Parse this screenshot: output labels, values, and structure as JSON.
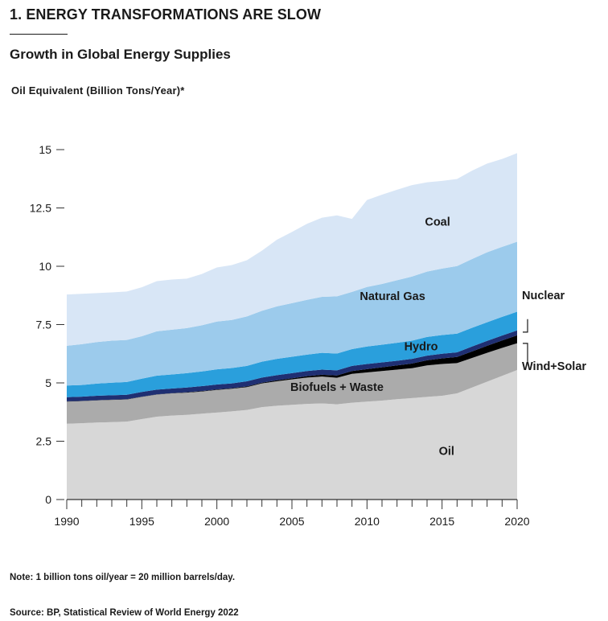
{
  "header": {
    "title": "1. ENERGY TRANSFORMATIONS ARE SLOW",
    "subtitle": "Growth in Global Energy Supplies",
    "units": "Oil Equivalent (Billion Tons/Year)*"
  },
  "footer": {
    "note": "Note: 1 billion tons oil/year = 20 million barrels/day.",
    "source": "Source: BP, Statistical Review of World Energy 2022"
  },
  "colors": {
    "oil": "#d7d7d7",
    "biofuels": "#ababab",
    "wind_solar": "#000000",
    "nuclear": "#1f2f72",
    "hydro": "#2a9fdc",
    "natural_gas": "#9ccbec",
    "coal": "#d8e6f6",
    "axis": "#333333"
  },
  "chart_data": {
    "type": "area",
    "stacked": true,
    "title": "Growth in Global Energy Supplies",
    "xlabel": "",
    "ylabel": "Oil Equivalent (Billion Tons/Year)*",
    "xlim": [
      1990,
      2020
    ],
    "ylim": [
      0,
      15
    ],
    "x_ticks": [
      1990,
      1995,
      2000,
      2005,
      2010,
      2015,
      2020
    ],
    "y_ticks": [
      0,
      2.5,
      5,
      7.5,
      10,
      12.5,
      15
    ],
    "y_tick_labels": [
      "0",
      "2.5",
      "5",
      "7.5",
      "10",
      "12.5",
      "15"
    ],
    "x": [
      1990,
      1991,
      1992,
      1993,
      1994,
      1995,
      1996,
      1997,
      1998,
      1999,
      2000,
      2001,
      2002,
      2003,
      2004,
      2005,
      2006,
      2007,
      2008,
      2009,
      2010,
      2011,
      2012,
      2013,
      2014,
      2015,
      2016,
      2017,
      2018,
      2019,
      2020
    ],
    "series": [
      {
        "name": "Oil",
        "key": "oil",
        "values": [
          3.25,
          3.27,
          3.3,
          3.32,
          3.34,
          3.45,
          3.55,
          3.6,
          3.63,
          3.68,
          3.73,
          3.78,
          3.84,
          3.96,
          4.02,
          4.06,
          4.1,
          4.12,
          4.08,
          4.15,
          4.2,
          4.24,
          4.3,
          4.35,
          4.4,
          4.45,
          4.55,
          4.8,
          5.05,
          5.3,
          5.55
        ]
      },
      {
        "name": "Biofuels + Waste",
        "key": "biofuels",
        "values": [
          0.95,
          0.95,
          0.95,
          0.95,
          0.95,
          0.95,
          0.95,
          0.95,
          0.95,
          0.95,
          0.97,
          0.97,
          0.98,
          1.02,
          1.05,
          1.09,
          1.13,
          1.15,
          1.14,
          1.24,
          1.25,
          1.27,
          1.27,
          1.28,
          1.35,
          1.36,
          1.3,
          1.27,
          1.24,
          1.2,
          1.15
        ]
      },
      {
        "name": "Wind+Solar",
        "key": "wind_solar",
        "values": [
          0.01,
          0.01,
          0.01,
          0.01,
          0.01,
          0.01,
          0.01,
          0.01,
          0.02,
          0.02,
          0.02,
          0.02,
          0.03,
          0.03,
          0.04,
          0.05,
          0.06,
          0.08,
          0.1,
          0.12,
          0.14,
          0.16,
          0.18,
          0.2,
          0.22,
          0.24,
          0.26,
          0.28,
          0.3,
          0.32,
          0.34
        ]
      },
      {
        "name": "Nuclear",
        "key": "nuclear",
        "values": [
          0.18,
          0.18,
          0.19,
          0.19,
          0.19,
          0.2,
          0.2,
          0.2,
          0.2,
          0.21,
          0.21,
          0.21,
          0.22,
          0.22,
          0.22,
          0.22,
          0.22,
          0.22,
          0.22,
          0.22,
          0.22,
          0.21,
          0.2,
          0.2,
          0.2,
          0.2,
          0.2,
          0.21,
          0.21,
          0.21,
          0.21
        ]
      },
      {
        "name": "Hydro",
        "key": "hydro",
        "values": [
          0.5,
          0.5,
          0.52,
          0.54,
          0.55,
          0.57,
          0.6,
          0.6,
          0.62,
          0.63,
          0.65,
          0.66,
          0.66,
          0.68,
          0.7,
          0.7,
          0.7,
          0.72,
          0.72,
          0.72,
          0.75,
          0.76,
          0.77,
          0.78,
          0.8,
          0.8,
          0.8,
          0.8,
          0.8,
          0.8,
          0.8
        ]
      },
      {
        "name": "Natural Gas",
        "key": "natural_gas",
        "values": [
          1.7,
          1.75,
          1.78,
          1.8,
          1.8,
          1.82,
          1.9,
          1.92,
          1.93,
          1.98,
          2.05,
          2.06,
          2.12,
          2.18,
          2.25,
          2.3,
          2.35,
          2.4,
          2.45,
          2.45,
          2.55,
          2.6,
          2.68,
          2.75,
          2.8,
          2.85,
          2.9,
          2.95,
          3.0,
          3.0,
          3.0
        ]
      },
      {
        "name": "Coal",
        "key": "coal",
        "values": [
          2.2,
          2.16,
          2.1,
          2.07,
          2.08,
          2.1,
          2.15,
          2.15,
          2.12,
          2.2,
          2.32,
          2.35,
          2.41,
          2.58,
          2.86,
          3.05,
          3.26,
          3.39,
          3.47,
          3.13,
          3.73,
          3.83,
          3.88,
          3.92,
          3.83,
          3.76,
          3.73,
          3.79,
          3.8,
          3.77,
          3.8
        ]
      }
    ],
    "labels": {
      "oil": "Oil",
      "biofuels": "Biofuels + Waste",
      "hydro": "Hydro",
      "natural_gas": "Natural Gas",
      "coal": "Coal",
      "nuclear": "Nuclear",
      "wind_solar": "Wind+Solar"
    }
  }
}
